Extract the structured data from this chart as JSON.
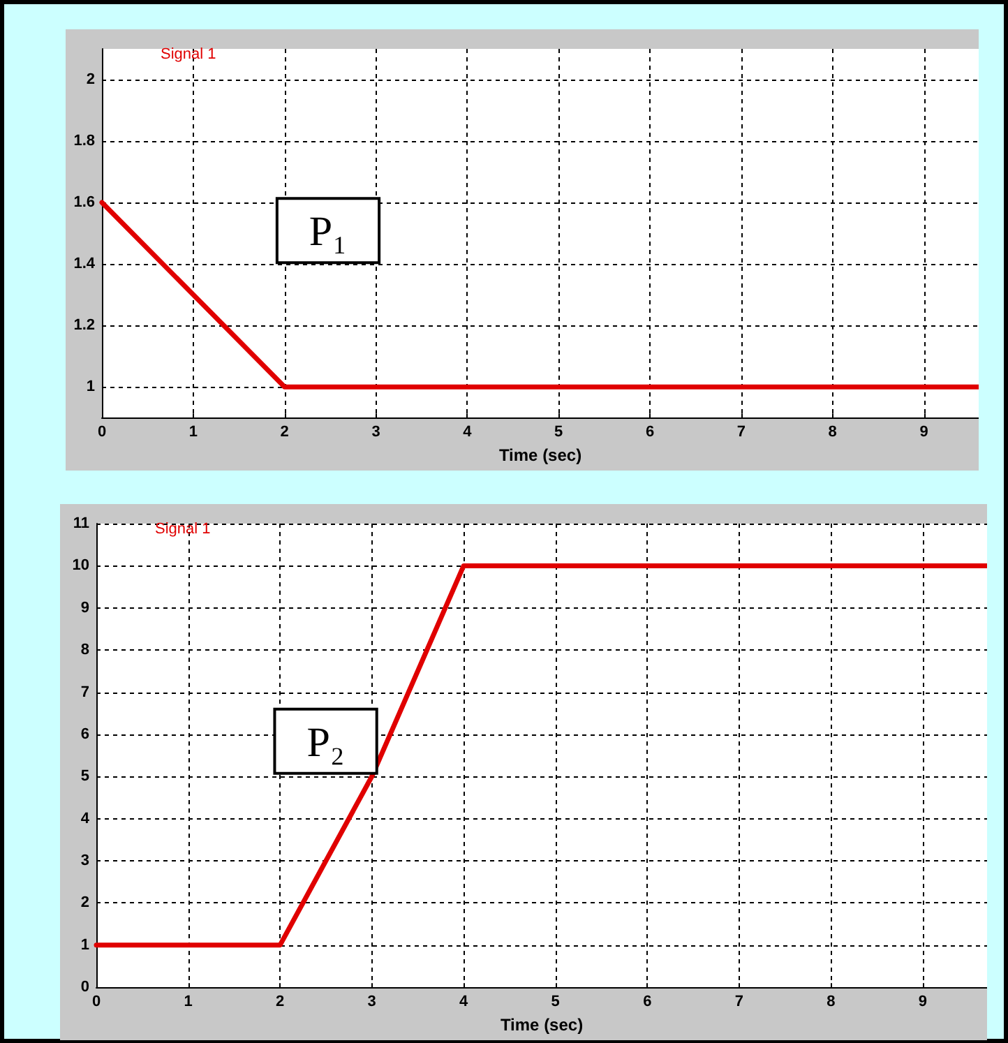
{
  "chart_data": [
    {
      "type": "line",
      "xlabel": "Time (sec)",
      "x": [
        0,
        2,
        9.6
      ],
      "series": [
        {
          "name": "Signal 1",
          "color": "#e00000",
          "values": [
            1.6,
            1,
            1
          ]
        }
      ],
      "xlim": [
        0,
        9.6
      ],
      "ylim": [
        0.9,
        2.1
      ],
      "xticks": [
        0,
        1,
        2,
        3,
        4,
        5,
        6,
        7,
        8,
        9
      ],
      "yticks": [
        1,
        1.2,
        1.4,
        1.6,
        1.8,
        2
      ],
      "grid": true,
      "legend": "top left",
      "marker": "none",
      "line_style": "solid",
      "annotations": [
        "P₁"
      ]
    },
    {
      "type": "line",
      "xlabel": "Time (sec)",
      "x": [
        0,
        2,
        3,
        4,
        9.7
      ],
      "series": [
        {
          "name": "Signal 1",
          "color": "#e00000",
          "values": [
            1,
            1,
            5,
            10,
            10
          ]
        }
      ],
      "xlim": [
        0,
        9.7
      ],
      "ylim": [
        0,
        11
      ],
      "xticks": [
        0,
        1,
        2,
        3,
        4,
        5,
        6,
        7,
        8,
        9
      ],
      "yticks": [
        0,
        1,
        2,
        3,
        4,
        5,
        6,
        7,
        8,
        9,
        10,
        11
      ],
      "grid": true,
      "legend": "top left",
      "marker": "none",
      "line_style": "solid",
      "annotations": [
        "P₂"
      ]
    }
  ]
}
